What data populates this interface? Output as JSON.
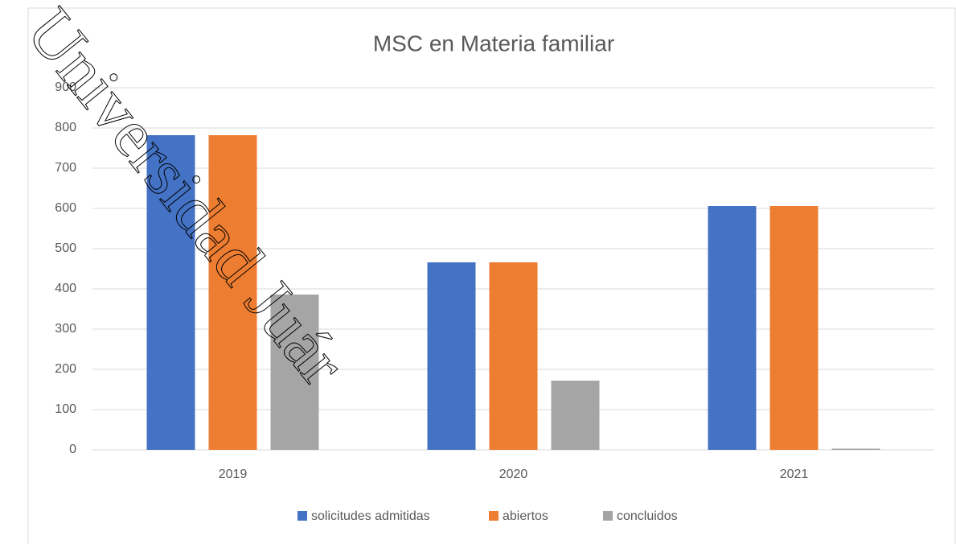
{
  "chart_data": {
    "type": "bar",
    "title": "MSC en Materia familiar",
    "categories": [
      "2019",
      "2020",
      "2021"
    ],
    "series": [
      {
        "name": "solicitudes admitidas",
        "color": "#4472c4",
        "values": [
          782,
          466,
          606
        ]
      },
      {
        "name": "abiertos",
        "color": "#ed7d31",
        "values": [
          782,
          466,
          606
        ]
      },
      {
        "name": "concluidos",
        "color": "#a5a5a5",
        "values": [
          386,
          172,
          3
        ]
      }
    ],
    "ylim": [
      0,
      900
    ],
    "yticks": [
      0,
      100,
      200,
      300,
      400,
      500,
      600,
      700,
      800,
      900
    ],
    "grid": true,
    "legend": "bottom",
    "watermark": "Universidad Juár"
  }
}
